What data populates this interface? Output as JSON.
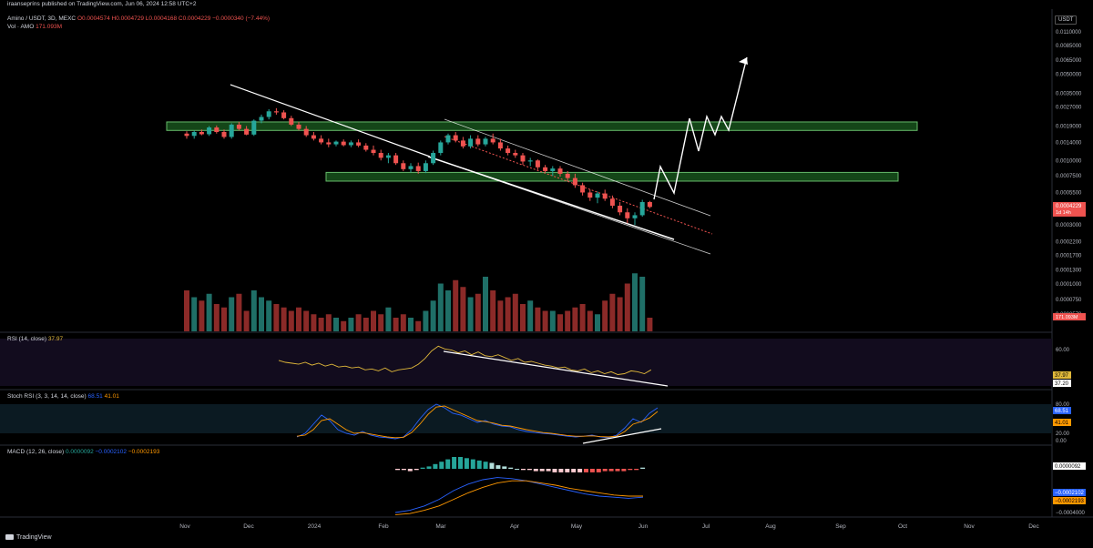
{
  "header": {
    "published": "iraansepríns published on TradingView.com, Jun 06, 2024 12:58 UTC+2",
    "symbol_line": "Amino / USDT, 3D, MEXC",
    "ohlc": "O0.0004574  H0.0004729  L0.0004168  C0.0004229  −0.0000340 (−7.44%)",
    "volume_label": "Vol · AMO",
    "volume_value": "171.093M",
    "currency_button": "USDT"
  },
  "footer": {
    "brand": "TradingView"
  },
  "colors": {
    "up": "#26a69a",
    "down": "#ef5350",
    "zone": "#4caf50",
    "rsi": "#e0b83a",
    "stoch_k": "#2962ff",
    "stoch_d": "#ff9800",
    "macd": "#2962ff",
    "signal": "#ff9800",
    "last_price": "#ef5350"
  },
  "chart_data": {
    "type": "candlestick",
    "title": "Amino / USDT, 3D, MEXC",
    "price_axis": {
      "scale": "log",
      "ticks": [
        "0.0110000",
        "0.0085000",
        "0.0065000",
        "0.0050000",
        "0.0035000",
        "0.0027000",
        "0.0019000",
        "0.0014000",
        "0.0010000",
        "0.0007500",
        "0.0005500",
        "0.0003000",
        "0.0002200",
        "0.0001700",
        "0.0001300",
        "0.0001000",
        "0.0000750",
        "0.0000570"
      ]
    },
    "x_axis": {
      "ticks": [
        "Nov",
        "Dec",
        "2024",
        "Feb",
        "Mar",
        "Apr",
        "May",
        "Jun",
        "Jul",
        "Aug",
        "Sep",
        "Oct",
        "Nov",
        "Dec"
      ]
    },
    "last_price": {
      "value": "0.0004229",
      "countdown": "1d 14h"
    },
    "candles_ohlc": [
      [
        0.00165,
        0.00172,
        0.0015,
        0.00158
      ],
      [
        0.00158,
        0.00175,
        0.0015,
        0.0017
      ],
      [
        0.0017,
        0.00178,
        0.0016,
        0.00163
      ],
      [
        0.00163,
        0.0019,
        0.00158,
        0.00185
      ],
      [
        0.00185,
        0.00192,
        0.00165,
        0.0017
      ],
      [
        0.0017,
        0.00178,
        0.0015,
        0.00155
      ],
      [
        0.00155,
        0.002,
        0.0015,
        0.00195
      ],
      [
        0.00195,
        0.00205,
        0.00175,
        0.0018
      ],
      [
        0.0018,
        0.0019,
        0.0016,
        0.00162
      ],
      [
        0.00162,
        0.00215,
        0.00158,
        0.0021
      ],
      [
        0.0021,
        0.00235,
        0.002,
        0.00225
      ],
      [
        0.00225,
        0.0026,
        0.00215,
        0.0025
      ],
      [
        0.0025,
        0.00265,
        0.00235,
        0.00245
      ],
      [
        0.00245,
        0.00255,
        0.00215,
        0.0022
      ],
      [
        0.0022,
        0.0023,
        0.0019,
        0.00195
      ],
      [
        0.00195,
        0.00205,
        0.00175,
        0.0018
      ],
      [
        0.0018,
        0.0019,
        0.00155,
        0.0016
      ],
      [
        0.0016,
        0.0017,
        0.00145,
        0.0015
      ],
      [
        0.0015,
        0.0016,
        0.00135,
        0.0014
      ],
      [
        0.0014,
        0.0015,
        0.00128,
        0.00135
      ],
      [
        0.00135,
        0.00145,
        0.0013,
        0.00142
      ],
      [
        0.00142,
        0.00148,
        0.0013,
        0.00133
      ],
      [
        0.00133,
        0.00145,
        0.00128,
        0.0014
      ],
      [
        0.0014,
        0.00148,
        0.00128,
        0.00132
      ],
      [
        0.00132,
        0.00138,
        0.00118,
        0.00122
      ],
      [
        0.00122,
        0.00132,
        0.0011,
        0.00115
      ],
      [
        0.00115,
        0.00122,
        0.001,
        0.00105
      ],
      [
        0.00105,
        0.00115,
        0.00095,
        0.0011
      ],
      [
        0.0011,
        0.00115,
        0.00092,
        0.00095
      ],
      [
        0.00095,
        0.001,
        0.00082,
        0.00085
      ],
      [
        0.00085,
        0.00095,
        0.0008,
        0.0009
      ],
      [
        0.0009,
        0.00096,
        0.00078,
        0.00082
      ],
      [
        0.00082,
        0.001,
        0.00079,
        0.00095
      ],
      [
        0.00095,
        0.0012,
        0.00092,
        0.00115
      ],
      [
        0.00115,
        0.00145,
        0.0011,
        0.0014
      ],
      [
        0.0014,
        0.00165,
        0.00135,
        0.0016
      ],
      [
        0.0016,
        0.0017,
        0.0014,
        0.00145
      ],
      [
        0.00145,
        0.00155,
        0.00125,
        0.0013
      ],
      [
        0.0013,
        0.0016,
        0.00125,
        0.0015
      ],
      [
        0.0015,
        0.0016,
        0.0013,
        0.00135
      ],
      [
        0.00135,
        0.00155,
        0.0013,
        0.0015
      ],
      [
        0.0015,
        0.00165,
        0.00135,
        0.0014
      ],
      [
        0.0014,
        0.0015,
        0.0012,
        0.00125
      ],
      [
        0.00125,
        0.00132,
        0.0011,
        0.00115
      ],
      [
        0.00115,
        0.00122,
        0.00105,
        0.0011
      ],
      [
        0.0011,
        0.00115,
        0.00092,
        0.00098
      ],
      [
        0.00098,
        0.00105,
        0.0009,
        0.001
      ],
      [
        0.001,
        0.00102,
        0.00084,
        0.00088
      ],
      [
        0.00088,
        0.00092,
        0.0008,
        0.00082
      ],
      [
        0.00082,
        0.0009,
        0.00075,
        0.00086
      ],
      [
        0.00086,
        0.0009,
        0.00074,
        0.00078
      ],
      [
        0.00078,
        0.00082,
        0.00068,
        0.00072
      ],
      [
        0.00072,
        0.00078,
        0.0006,
        0.00063
      ],
      [
        0.00063,
        0.00066,
        0.00052,
        0.00055
      ],
      [
        0.00055,
        0.00058,
        0.00047,
        0.0005
      ],
      [
        0.0005,
        0.00056,
        0.00045,
        0.00054
      ],
      [
        0.00054,
        0.00058,
        0.00047,
        0.00049
      ],
      [
        0.00049,
        0.00052,
        0.00041,
        0.00043
      ],
      [
        0.00043,
        0.00046,
        0.00036,
        0.00038
      ],
      [
        0.00038,
        0.00041,
        0.00031,
        0.00034
      ],
      [
        0.00034,
        0.00038,
        0.0003,
        0.00036
      ],
      [
        0.00036,
        0.00048,
        0.00035,
        0.00046
      ],
      [
        0.00046,
        0.00047,
        0.00041,
        0.00042
      ]
    ],
    "volume": [
      0.6,
      0.5,
      0.45,
      0.55,
      0.4,
      0.35,
      0.5,
      0.55,
      0.3,
      0.6,
      0.5,
      0.45,
      0.4,
      0.35,
      0.3,
      0.35,
      0.3,
      0.25,
      0.2,
      0.25,
      0.2,
      0.15,
      0.2,
      0.25,
      0.2,
      0.3,
      0.25,
      0.35,
      0.2,
      0.25,
      0.2,
      0.15,
      0.3,
      0.45,
      0.7,
      0.6,
      0.75,
      0.65,
      0.5,
      0.55,
      0.8,
      0.6,
      0.45,
      0.5,
      0.55,
      0.4,
      0.45,
      0.35,
      0.3,
      0.3,
      0.25,
      0.3,
      0.35,
      0.4,
      0.3,
      0.25,
      0.45,
      0.55,
      0.5,
      0.7,
      0.85,
      0.8,
      0.2
    ],
    "indicators": {
      "rsi": {
        "label": "RSI (14, close)",
        "value": "37.97",
        "ma_value": "37.20",
        "levels": [
          "60.00"
        ]
      },
      "stoch_rsi": {
        "label": "Stoch RSI (3, 3, 14, 14, close)",
        "k": "68.51",
        "d": "41.01",
        "levels": [
          "80.00",
          "20.00",
          "0.00"
        ]
      },
      "macd": {
        "label": "MACD (12, 26, close)",
        "hist": "0.0000092",
        "macd": "−0.0002102",
        "signal": "−0.0002193",
        "axis": [
          "−0.0004000"
        ]
      }
    },
    "zones": [
      [
        0.00175,
        0.00205
      ],
      [
        0.00068,
        0.0008
      ]
    ]
  }
}
